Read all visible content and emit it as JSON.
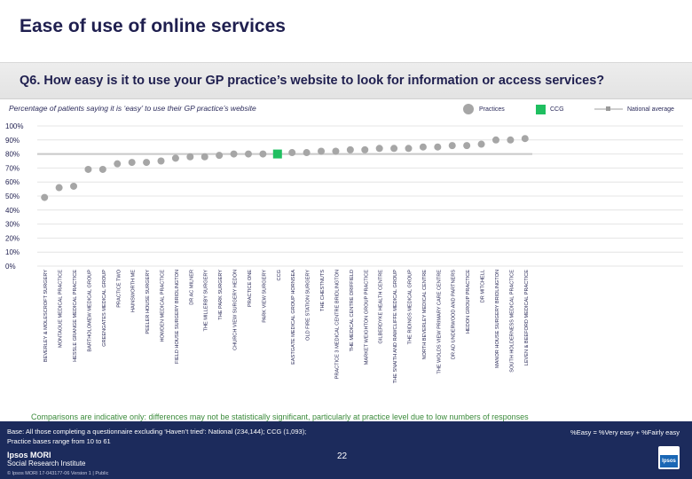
{
  "header": {
    "title": "Ease of use of online services"
  },
  "question": "Q6. How easy is it to use your GP practice’s website to look for information or access services?",
  "legend": {
    "practices": "Practices",
    "ccg": "CCG",
    "national": "National average"
  },
  "colors": {
    "practice": "#a6a6a6",
    "ccg": "#1fbf60",
    "national": "#c8c8c8",
    "text": "#1f1f4f"
  },
  "chart_data": {
    "type": "scatter",
    "title": "Percentage of patients saying it is ‘easy’ to use their GP practice’s website",
    "ylim": [
      0,
      100
    ],
    "yticks": [
      "0%",
      "10%",
      "20%",
      "30%",
      "40%",
      "50%",
      "60%",
      "70%",
      "80%",
      "90%",
      "100%"
    ],
    "categories": [
      "BEVERLEY & MOLESCROFT SURGERY",
      "MONTAGUE MEDICAL PRACTICE",
      "HESSLE GRANGE MEDICAL PRACTICE",
      "BARTHOLOMEW MEDICAL GROUP",
      "GREENGATES MEDICAL GROUP",
      "PRACTICE TWO",
      "HAINSWORTH ME",
      "PEELER HOUSE SURGERY",
      "HOWDEN MEDICAL PRACTICE",
      "FIELD HOUSE SURGERY BRIDLINGTON",
      "DR AC MILNER",
      "THE MILLERBY SURGERY",
      "THE PARK SURGERY",
      "CHURCH VIEW SURGERY HEDON",
      "PRACTICE ONE",
      "PARK VIEW SURGERY",
      "CCG",
      "EASTGATE MEDICAL GROUP HORNSEA",
      "OLD FIRE STATION SURGERY",
      "THE CHESTNUTS",
      "PRACTICE 3 MEDICAL CENTRE BRIDLINGTON",
      "THE MEDICAL CENTRE DRIFFIELD",
      "MARKET WEIGHTON GROUP PRACTICE",
      "GILBERDYKE HEALTH CENTRE",
      "THE SNAITH AND RAWCLIFFE MEDICAL GROUP",
      "THE RIDINGS MEDICAL GROUP",
      "NORTH BEVERLEY MEDICAL CENTRE",
      "THE WOLDS VIEW PRIMARY CARE CENTRE",
      "DR AD UNDERWOOD AND PARTNERS",
      "HEDON GROUP PRACTICE",
      "DR MITCHELL",
      "MANOR HOUSE SURGERY BRIDLINGTON",
      "SOUTH HOLDERNESS MEDICAL PRACTICE",
      "LEVEN & BEEFORD MEDICAL PRACTICE"
    ],
    "values": [
      49,
      56,
      57,
      69,
      69,
      73,
      74,
      74,
      75,
      77,
      78,
      78,
      79,
      80,
      80,
      80,
      80,
      81,
      81,
      82,
      82,
      83,
      83,
      84,
      84,
      84,
      85,
      85,
      86,
      86,
      87,
      90,
      90,
      91
    ],
    "ccg_index": 16,
    "national_average": 80
  },
  "footnote": "Comparisons are indicative only: differences may not be statistically significant, particularly at practice level due to low numbers of responses",
  "footer": {
    "base_line1": "Base: All those completing a questionnaire excluding ‘Haven’t tried’: National (234,144); CCG (1,093);",
    "base_line2": "Practice bases range from 10 to 61",
    "easy_definition": "%Easy = %Very easy + %Fairly easy",
    "page_number": "22",
    "logo_line1": "Ipsos MORI",
    "logo_line2": "Social Research Institute",
    "copyright": "© Ipsos MORI     17-043177-06 Version 1 | Public",
    "right_logo": "Ipsos"
  }
}
